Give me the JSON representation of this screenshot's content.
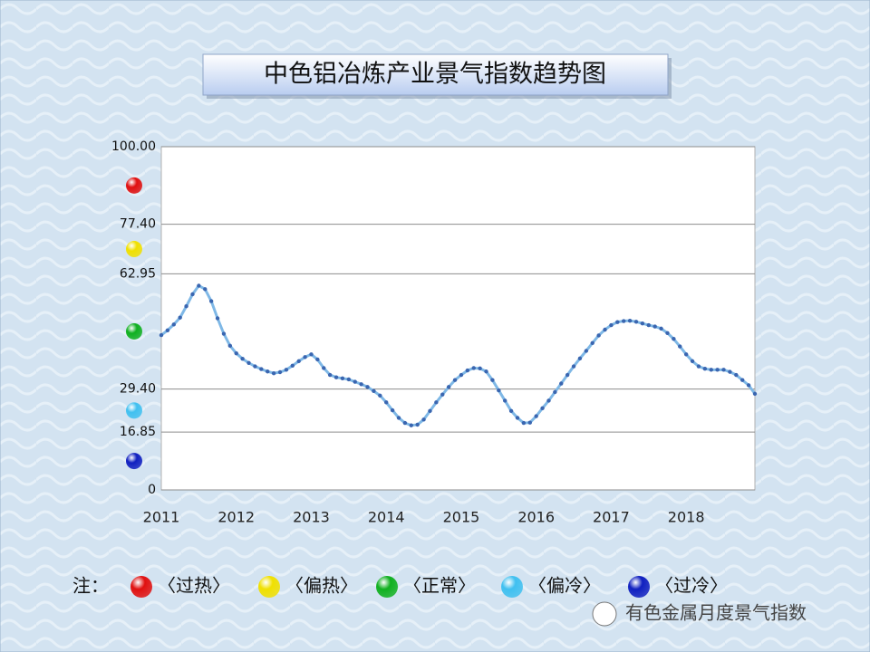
{
  "chart_data": {
    "type": "line",
    "title": "中色铝冶炼产业景气指数趋势图",
    "categories": [
      "2011",
      null,
      null,
      null,
      null,
      null,
      null,
      null,
      null,
      null,
      null,
      null,
      "2012",
      null,
      null,
      null,
      null,
      null,
      null,
      null,
      null,
      null,
      null,
      null,
      "2013",
      null,
      null,
      null,
      null,
      null,
      null,
      null,
      null,
      null,
      null,
      null,
      "2014",
      null,
      null,
      null,
      null,
      null,
      null,
      null,
      null,
      null,
      null,
      null,
      "2015",
      null,
      null,
      null,
      null,
      null,
      null,
      null,
      null,
      null,
      null,
      null,
      "2016",
      null,
      null,
      null,
      null,
      null,
      null,
      null,
      null,
      null,
      null,
      null,
      "2017",
      null,
      null,
      null,
      null,
      null,
      null,
      null,
      null,
      null,
      null,
      null,
      "2018",
      null,
      null,
      null,
      null,
      null,
      null,
      null,
      null,
      null,
      null,
      null
    ],
    "values": [
      45.1,
      46.5,
      48.2,
      50.2,
      53.5,
      57,
      59.5,
      58.5,
      55,
      50,
      45.5,
      42,
      39.8,
      38.2,
      37,
      36,
      35.2,
      34.5,
      34,
      34.3,
      35,
      36.2,
      37.5,
      38.7,
      39.5,
      38,
      35.5,
      33.5,
      32.8,
      32.5,
      32.2,
      31.5,
      30.8,
      30,
      28.8,
      27.5,
      25.5,
      23.2,
      21,
      19.5,
      18.8,
      19,
      20.5,
      23,
      25.5,
      27.8,
      30,
      32,
      33.5,
      34.8,
      35.5,
      35.4,
      34.5,
      32,
      29,
      26,
      23,
      21,
      19.5,
      19.6,
      21.5,
      23.8,
      26,
      28.5,
      31,
      33.5,
      36,
      38.3,
      40.5,
      42.8,
      45,
      46.7,
      48,
      48.9,
      49.2,
      49.3,
      49,
      48.5,
      48,
      47.6,
      47,
      45.7,
      44,
      41.8,
      39.5,
      37.5,
      36,
      35.3,
      35,
      35,
      35,
      34.4,
      33.5,
      32,
      30.5,
      28
    ],
    "color": "#7fb8e6",
    "marker_color": "#3a66b0",
    "ylim": [
      0,
      100
    ],
    "yticks": [
      0,
      {
        "value": 16.85,
        "label": "16.85"
      },
      {
        "value": 29.4,
        "label": "29.40"
      },
      {
        "value": 62.95,
        "label": "62.95"
      },
      {
        "value": 77.4,
        "label": "77.40"
      },
      {
        "value": 100,
        "label": "100.00"
      }
    ],
    "grid": true,
    "legend": {
      "label": "注：",
      "items": [
        {
          "name": "〈过热〉",
          "color": "#e01010"
        },
        {
          "name": "〈偏热〉",
          "color": "#f0e000"
        },
        {
          "name": "〈正常〉",
          "color": "#10b020"
        },
        {
          "name": "〈偏冷〉",
          "color": "#40c0f0"
        },
        {
          "name": "〈过冷〉",
          "color": "#1020c0"
        }
      ]
    },
    "watermark": "有色金属月度景气指数"
  }
}
